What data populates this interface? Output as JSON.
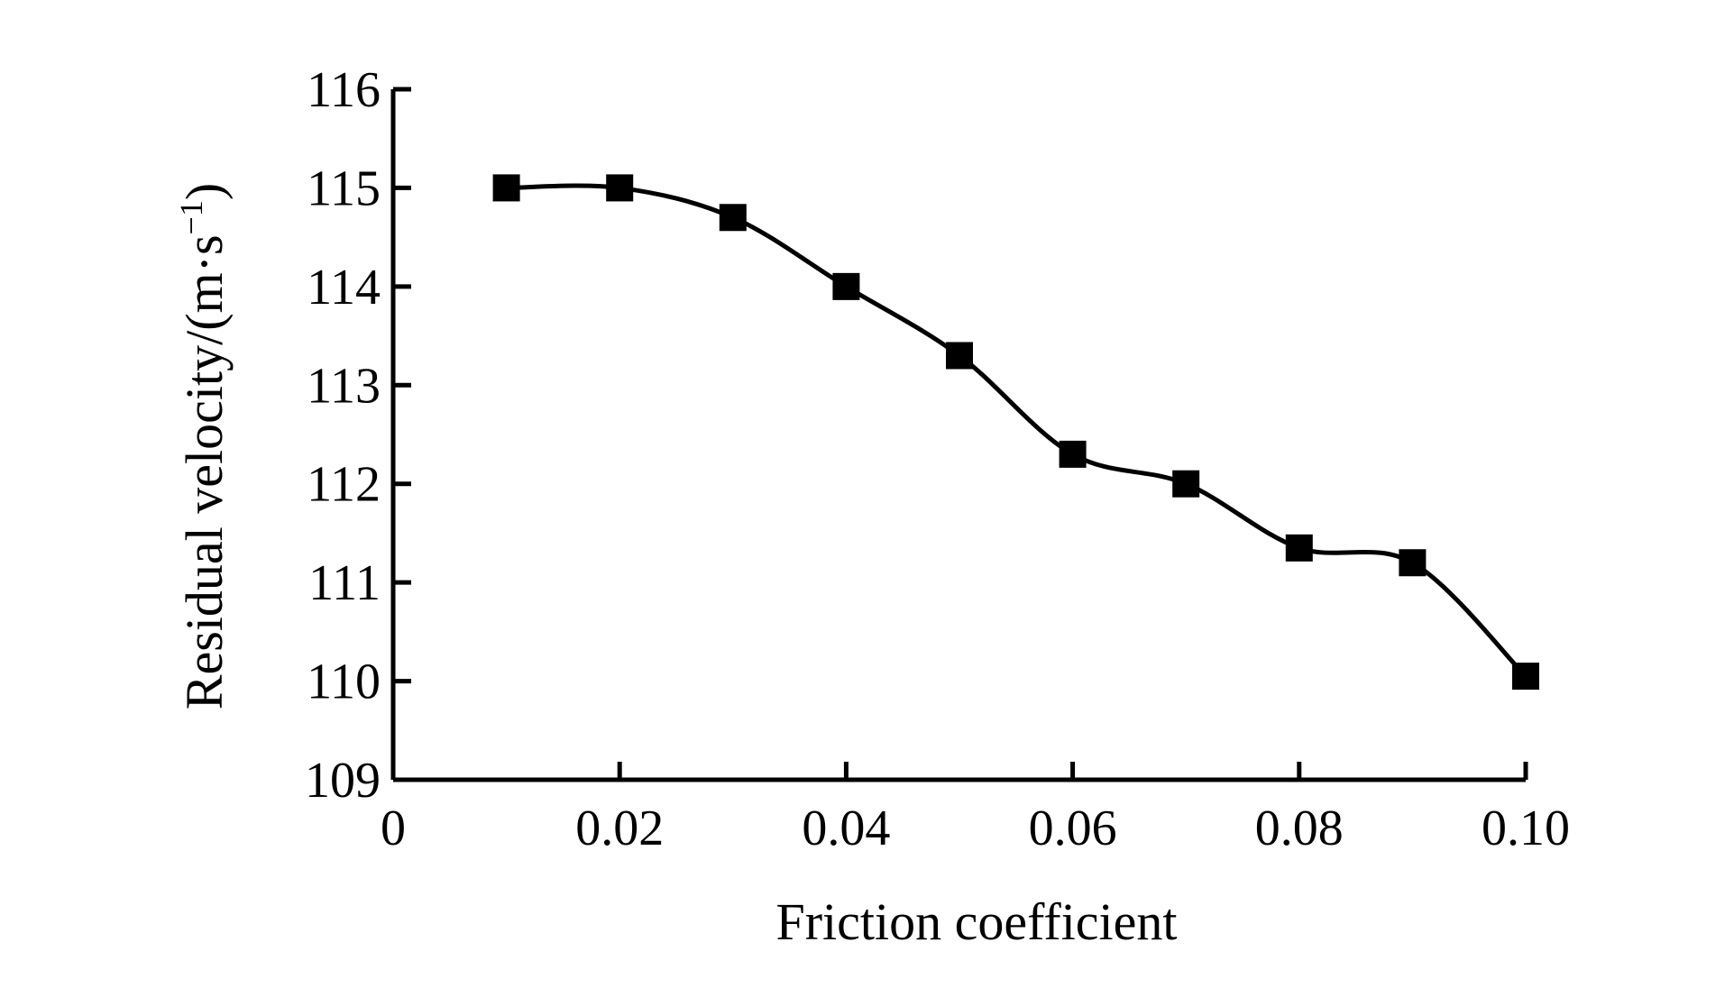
{
  "chart_data": {
    "type": "line",
    "title": "",
    "xlabel": "Friction coefficient",
    "ylabel": "Residual velocity/(m·s",
    "ylabel_superscript": "−1",
    "ylabel_close": ")",
    "xlim": [
      0,
      0.1
    ],
    "ylim": [
      109,
      116
    ],
    "x_ticks": [
      0,
      0.02,
      0.04,
      0.06,
      0.08,
      0.1
    ],
    "x_tick_labels": [
      "0",
      "0.02",
      "0.04",
      "0.06",
      "0.08",
      "0.10"
    ],
    "y_ticks": [
      109,
      110,
      111,
      112,
      113,
      114,
      115,
      116
    ],
    "y_tick_labels": [
      "109",
      "110",
      "111",
      "112",
      "113",
      "114",
      "115",
      "116"
    ],
    "grid": false,
    "legend": "none",
    "marker": "square",
    "color": "#000000",
    "smooth": true,
    "series": [
      {
        "x": [
          0.01,
          0.02,
          0.03,
          0.04,
          0.05,
          0.06,
          0.07,
          0.08,
          0.09,
          0.1
        ],
        "y": [
          115.0,
          115.0,
          114.7,
          114.0,
          113.3,
          112.3,
          112.0,
          111.35,
          111.2,
          110.05
        ]
      }
    ]
  }
}
